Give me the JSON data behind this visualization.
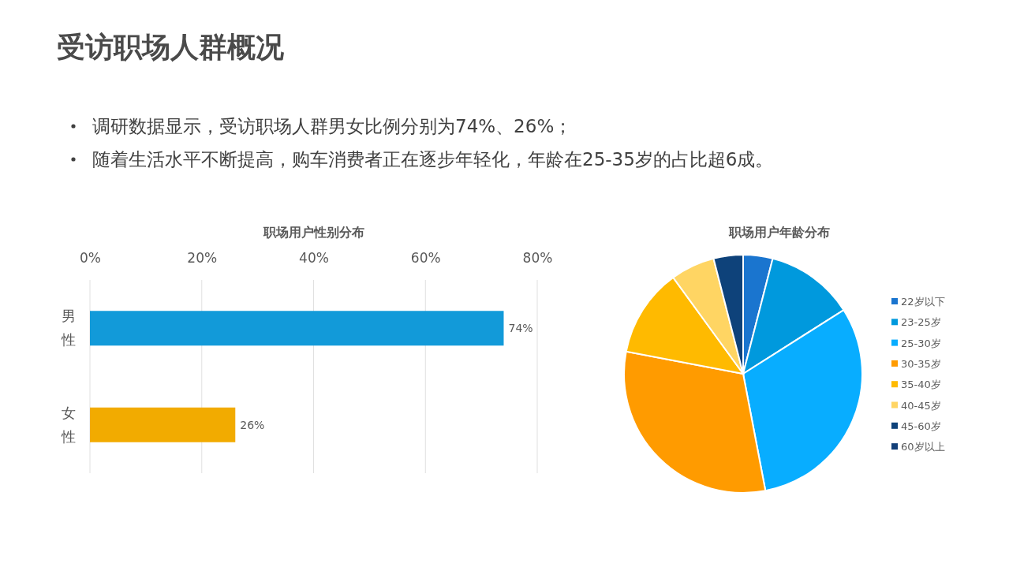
{
  "chart_data": [
    {
      "type": "other",
      "title": "受访职场人群概况",
      "annotations": [
        "调研数据显示，受访职场人群男女比例分别为74%、26%；",
        "随着生活水平不断提高，购车消费者正在逐步年轻化，年龄在25-35岁的占比超6成。"
      ]
    },
    {
      "type": "bar",
      "title": "职场用户性别分布",
      "orientation": "horizontal",
      "categories": [
        "男性",
        "女性"
      ],
      "values": [
        74,
        26
      ],
      "colors": [
        "#129ad9",
        "#f2ab00"
      ],
      "value_labels": [
        "74%",
        "26%"
      ],
      "xlim": [
        0,
        80
      ],
      "xticks": [
        {
          "value": 0,
          "label": "0%"
        },
        {
          "value": 20,
          "label": "20%"
        },
        {
          "value": 40,
          "label": "40%"
        },
        {
          "value": 60,
          "label": "60%"
        },
        {
          "value": 80,
          "label": "80%"
        }
      ],
      "grid": "x"
    },
    {
      "type": "pie",
      "title": "职场用户年龄分布",
      "categories": [
        "22岁以下",
        "23-25岁",
        "25-30岁",
        "30-35岁",
        "35-40岁",
        "40-45岁",
        "45-60岁",
        "60岁以上"
      ],
      "values": [
        4,
        12,
        31,
        31,
        12,
        6,
        4,
        0
      ],
      "colors": [
        "#1a75cf",
        "#0099dd",
        "#08adff",
        "#ff9b00",
        "#ffba00",
        "#ffd563",
        "#0e427a",
        "#123f78"
      ],
      "legend": "right"
    }
  ]
}
